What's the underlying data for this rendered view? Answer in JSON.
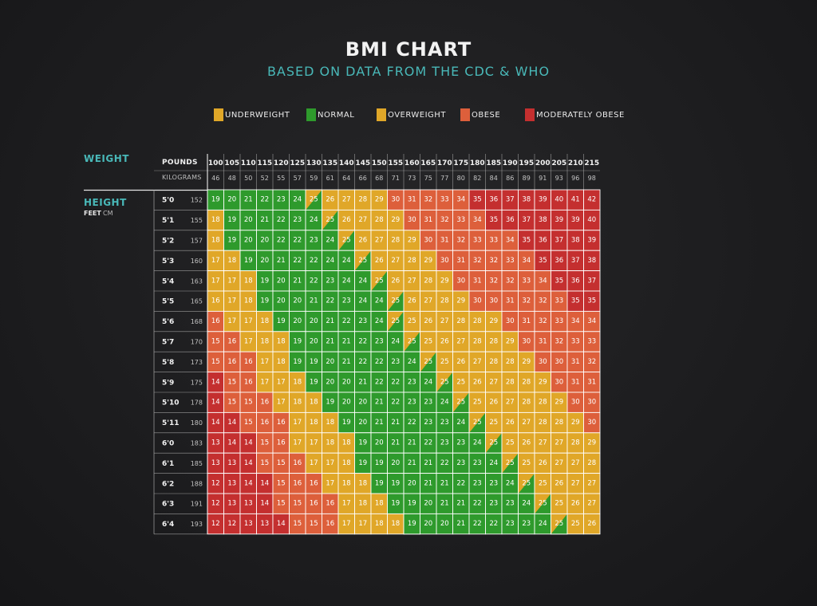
{
  "chart_data": {
    "type": "heatmap",
    "title": "BMI CHART",
    "subtitle": "BASED ON DATA FROM THE CDC & WHO",
    "legend": [
      {
        "name": "UNDERWEIGHT",
        "color": "#e0a728"
      },
      {
        "name": "NORMAL",
        "color": "#2e9a2c"
      },
      {
        "name": "OVERWEIGHT",
        "color": "#e0a728"
      },
      {
        "name": "OBESE",
        "color": "#dd5f3b"
      },
      {
        "name": "MODERATELY OBESE",
        "color": "#c42f2f"
      }
    ],
    "colors": {
      "underweight": "#e0a728",
      "normal": "#2e9a2c",
      "overweight": "#e0a728",
      "obese": "#dd5f3b",
      "moderately_obese": "#c42f2f",
      "accent": "#49b8b8"
    },
    "weight_axis_title": "WEIGHT",
    "pounds_label": "POUNDS",
    "kilograms_label": "KILOGRAMS",
    "height_axis_title": "HEIGHT",
    "feet_label": "FEET",
    "cm_label": "CM",
    "pounds": [
      "100",
      "105",
      "110",
      "115",
      "120",
      "125",
      "130",
      "135",
      "140",
      "145",
      "150",
      "155",
      "160",
      "165",
      "170",
      "175",
      "180",
      "185",
      "190",
      "195",
      "200",
      "205",
      "210",
      "215"
    ],
    "kilograms": [
      "46",
      "48",
      "50",
      "52",
      "55",
      "57",
      "59",
      "61",
      "64",
      "66",
      "68",
      "71",
      "73",
      "75",
      "77",
      "80",
      "82",
      "84",
      "86",
      "89",
      "91",
      "93",
      "96",
      "98"
    ],
    "heights_ft": [
      "5'0",
      "5'1",
      "5'2",
      "5'3",
      "5'4",
      "5'5",
      "5'6",
      "5'7",
      "5'8",
      "5'9",
      "5'10",
      "5'11",
      "6'0",
      "6'1",
      "6'2",
      "6'3",
      "6'4"
    ],
    "heights_cm": [
      "152",
      "155",
      "157",
      "160",
      "163",
      "165",
      "168",
      "170",
      "173",
      "175",
      "178",
      "180",
      "183",
      "185",
      "188",
      "191",
      "193"
    ],
    "bmi": [
      [
        19,
        20,
        21,
        22,
        23,
        24,
        25,
        26,
        27,
        28,
        29,
        30,
        31,
        32,
        33,
        34,
        35,
        36,
        37,
        38,
        39,
        40,
        41,
        42
      ],
      [
        18,
        19,
        20,
        21,
        22,
        23,
        24,
        25,
        26,
        27,
        28,
        29,
        30,
        31,
        32,
        33,
        34,
        35,
        36,
        37,
        38,
        39,
        39,
        40
      ],
      [
        18,
        19,
        20,
        20,
        22,
        22,
        23,
        24,
        25,
        26,
        27,
        28,
        29,
        30,
        31,
        32,
        33,
        33,
        34,
        35,
        36,
        37,
        38,
        39
      ],
      [
        17,
        18,
        19,
        20,
        21,
        22,
        22,
        24,
        24,
        25,
        26,
        27,
        28,
        29,
        30,
        31,
        32,
        32,
        33,
        34,
        35,
        36,
        37,
        38
      ],
      [
        17,
        17,
        18,
        19,
        20,
        21,
        22,
        23,
        24,
        24,
        25,
        26,
        27,
        28,
        29,
        30,
        31,
        32,
        32,
        33,
        34,
        35,
        36,
        37
      ],
      [
        16,
        17,
        18,
        19,
        20,
        20,
        21,
        22,
        23,
        24,
        24,
        25,
        26,
        27,
        28,
        29,
        30,
        30,
        31,
        32,
        32,
        33,
        35,
        35
      ],
      [
        16,
        17,
        17,
        18,
        19,
        20,
        20,
        21,
        22,
        23,
        24,
        25,
        25,
        26,
        27,
        28,
        28,
        29,
        30,
        31,
        32,
        33,
        34,
        34
      ],
      [
        15,
        16,
        17,
        18,
        18,
        19,
        20,
        21,
        21,
        22,
        23,
        24,
        25,
        25,
        26,
        27,
        28,
        28,
        29,
        30,
        31,
        32,
        33,
        33
      ],
      [
        15,
        16,
        16,
        17,
        18,
        19,
        19,
        20,
        21,
        22,
        22,
        23,
        24,
        25,
        25,
        26,
        27,
        28,
        28,
        29,
        30,
        30,
        31,
        32
      ],
      [
        14,
        15,
        16,
        17,
        17,
        18,
        19,
        20,
        20,
        21,
        22,
        22,
        23,
        24,
        25,
        25,
        26,
        27,
        28,
        28,
        29,
        30,
        31,
        31
      ],
      [
        14,
        15,
        15,
        16,
        17,
        18,
        18,
        19,
        20,
        20,
        21,
        22,
        23,
        23,
        24,
        25,
        25,
        26,
        27,
        28,
        28,
        29,
        30,
        30
      ],
      [
        14,
        14,
        15,
        16,
        16,
        17,
        18,
        18,
        19,
        20,
        21,
        21,
        22,
        23,
        23,
        24,
        25,
        25,
        26,
        27,
        28,
        28,
        29,
        30
      ],
      [
        13,
        14,
        14,
        15,
        16,
        17,
        17,
        18,
        18,
        19,
        20,
        21,
        21,
        22,
        23,
        23,
        24,
        25,
        25,
        26,
        27,
        27,
        28,
        29
      ],
      [
        13,
        13,
        14,
        15,
        15,
        16,
        17,
        17,
        18,
        19,
        19,
        20,
        21,
        21,
        22,
        23,
        23,
        24,
        25,
        25,
        26,
        27,
        27,
        28
      ],
      [
        12,
        13,
        14,
        14,
        15,
        16,
        16,
        17,
        18,
        18,
        19,
        19,
        20,
        21,
        21,
        22,
        23,
        23,
        24,
        25,
        25,
        26,
        27,
        27
      ],
      [
        12,
        13,
        13,
        14,
        15,
        15,
        16,
        16,
        17,
        18,
        18,
        19,
        19,
        20,
        21,
        21,
        22,
        23,
        23,
        24,
        25,
        25,
        26,
        27
      ],
      [
        12,
        12,
        13,
        13,
        14,
        15,
        15,
        16,
        17,
        17,
        18,
        18,
        19,
        20,
        20,
        21,
        22,
        22,
        23,
        23,
        24,
        25,
        25,
        26
      ]
    ]
  }
}
